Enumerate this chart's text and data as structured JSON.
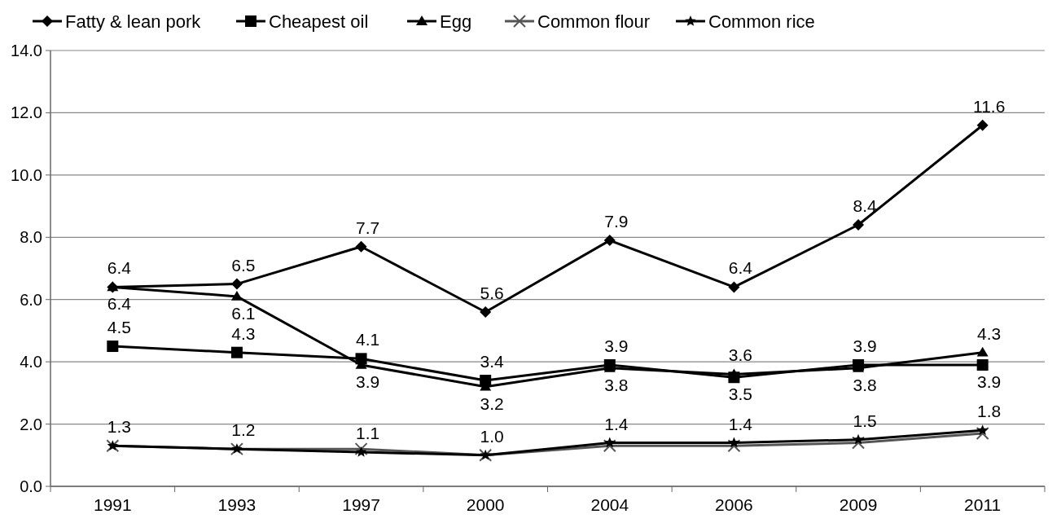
{
  "chart_data": {
    "type": "line",
    "categories": [
      "1991",
      "1993",
      "1997",
      "2000",
      "2004",
      "2006",
      "2009",
      "2011"
    ],
    "ylim": [
      0,
      14
    ],
    "yticks": [
      {
        "value": 0,
        "label": "0.0"
      },
      {
        "value": 2,
        "label": "2.0"
      },
      {
        "value": 4,
        "label": "4.0"
      },
      {
        "value": 6,
        "label": "6.0"
      },
      {
        "value": 8,
        "label": "8.0"
      },
      {
        "value": 10,
        "label": "10.0"
      },
      {
        "value": 12,
        "label": "12.0"
      },
      {
        "value": 14,
        "label": "14.0"
      }
    ],
    "grid": "y",
    "legend": "top",
    "line_style": "solid",
    "series": [
      {
        "name": "Fatty & lean pork",
        "color": "#000000",
        "marker": "diamond",
        "values": [
          6.4,
          6.5,
          7.7,
          5.6,
          7.9,
          6.4,
          8.4,
          11.6
        ],
        "value_labels": [
          "6.4",
          "6.5",
          "7.7",
          "5.6",
          "7.9",
          "6.4",
          "8.4",
          "11.6"
        ]
      },
      {
        "name": "Cheapest oil",
        "color": "#000000",
        "marker": "square",
        "values": [
          4.5,
          4.3,
          4.1,
          3.4,
          3.9,
          3.5,
          3.9,
          3.9
        ],
        "value_labels": [
          "4.5",
          "4.3",
          "4.1",
          "3.4",
          "3.9",
          "3.5",
          "3.9",
          "3.9"
        ]
      },
      {
        "name": "Egg",
        "color": "#000000",
        "marker": "triangle",
        "values": [
          6.4,
          6.1,
          3.9,
          3.2,
          3.8,
          3.6,
          3.8,
          4.3
        ],
        "value_labels": [
          "6.4",
          "6.1",
          "3.9",
          "3.2",
          "3.8",
          "3.6",
          "3.8",
          "4.3"
        ]
      },
      {
        "name": "Common flour",
        "color": "#555555",
        "marker": "cross",
        "values": [
          1.3,
          1.2,
          1.2,
          1.0,
          1.3,
          1.3,
          1.4,
          1.7
        ]
      },
      {
        "name": "Common rice",
        "color": "#000000",
        "marker": "star",
        "values": [
          1.3,
          1.2,
          1.1,
          1.0,
          1.4,
          1.4,
          1.5,
          1.8
        ],
        "value_labels": [
          "1.3",
          "1.2",
          "1.1",
          "1.0",
          "1.4",
          "1.4",
          "1.5",
          "1.8"
        ]
      }
    ]
  }
}
